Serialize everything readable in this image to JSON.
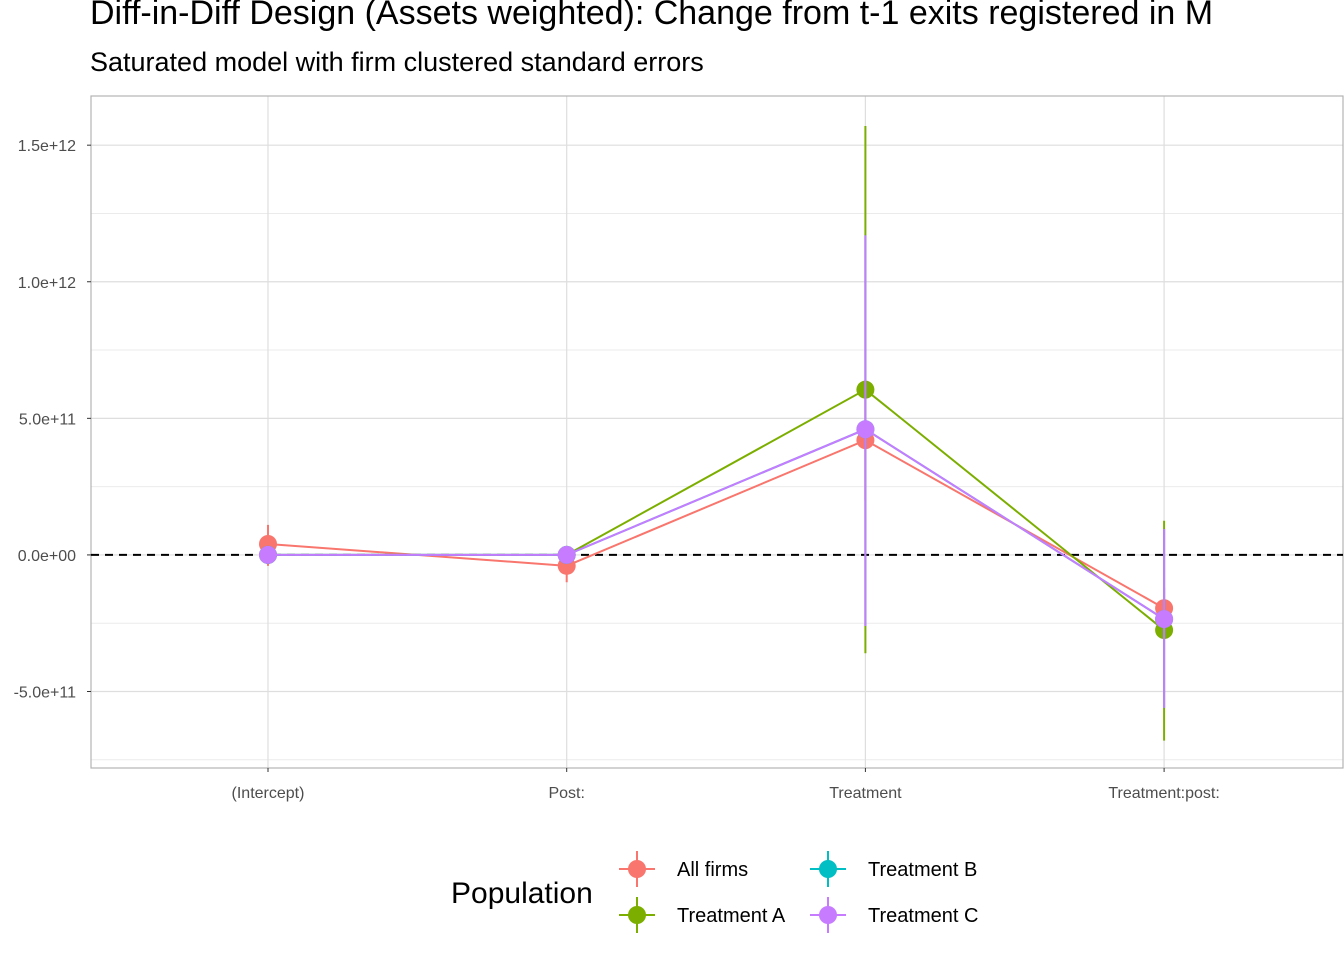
{
  "chart_data": {
    "type": "scatter",
    "title": "Diff-in-Diff Design (Assets weighted): Change from t-1 exits registered in M",
    "subtitle": "Saturated model with firm clustered standard errors",
    "categories": [
      "(Intercept)",
      "Post:",
      "Treatment",
      "Treatment:post:"
    ],
    "y_ticks": [
      {
        "value": -500000000000,
        "label": "-5.0e+11"
      },
      {
        "value": 0,
        "label": "0.0e+00"
      },
      {
        "value": 500000000000,
        "label": "5.0e+11"
      },
      {
        "value": 1000000000000,
        "label": "1.0e+12"
      },
      {
        "value": 1500000000000,
        "label": "1.5e+12"
      }
    ],
    "ylim": [
      -780000000000,
      1680000000000
    ],
    "grid": true,
    "reference_line": {
      "value": 0,
      "style": "dashed"
    },
    "legend": {
      "title": "Population",
      "position": "bottom"
    },
    "series": [
      {
        "name": "All firms",
        "color": "#F8766D",
        "values": [
          40000000000,
          -40000000000,
          420000000000,
          -195000000000
        ],
        "lower": [
          -40000000000,
          -100000000000,
          200000000000,
          -270000000000
        ],
        "upper": [
          110000000000,
          20000000000,
          640000000000,
          -120000000000
        ]
      },
      {
        "name": "Treatment A",
        "color": "#7CAE00",
        "values": [
          0,
          0,
          605000000000,
          -275000000000
        ],
        "lower": [
          -5000000000,
          -10000000000,
          -360000000000,
          -680000000000
        ],
        "upper": [
          5000000000,
          10000000000,
          1570000000000,
          125000000000
        ]
      },
      {
        "name": "Treatment B",
        "color": "#00BFC4",
        "values": [
          0,
          0,
          460000000000,
          -235000000000
        ],
        "lower": [
          -5000000000,
          -10000000000,
          -260000000000,
          -560000000000
        ],
        "upper": [
          5000000000,
          10000000000,
          1170000000000,
          95000000000
        ]
      },
      {
        "name": "Treatment C",
        "color": "#C77CFF",
        "values": [
          0,
          0,
          460000000000,
          -235000000000
        ],
        "lower": [
          -5000000000,
          -10000000000,
          -260000000000,
          -560000000000
        ],
        "upper": [
          5000000000,
          10000000000,
          1170000000000,
          95000000000
        ]
      }
    ]
  }
}
